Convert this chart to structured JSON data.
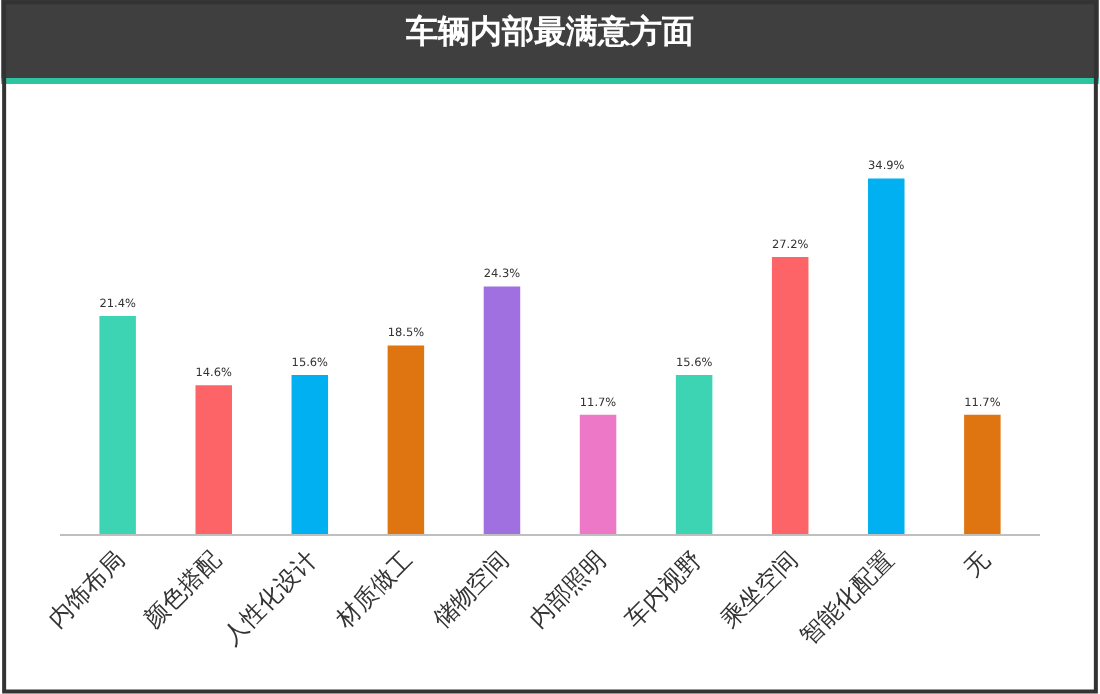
{
  "chart_data": {
    "type": "bar",
    "title": "车辆内部最满意方面",
    "categories": [
      "内饰布局",
      "颜色搭配",
      "人性化设计",
      "材质做工",
      "储物空间",
      "内部照明",
      "车内视野",
      "乘坐空间",
      "智能化配置",
      "无"
    ],
    "values": [
      21.4,
      14.6,
      15.6,
      18.5,
      24.3,
      11.7,
      15.6,
      27.2,
      34.9,
      11.7
    ],
    "value_labels": [
      "21.4%",
      "14.6%",
      "15.6%",
      "18.5%",
      "24.3%",
      "11.7%",
      "15.6%",
      "27.2%",
      "34.9%",
      "11.7%"
    ],
    "colors": [
      "#3dd4b4",
      "#fc6468",
      "#00b0f0",
      "#de7510",
      "#a070e0",
      "#ee78c8",
      "#3dd4b4",
      "#fc6468",
      "#00b0f0",
      "#de7510"
    ]
  }
}
